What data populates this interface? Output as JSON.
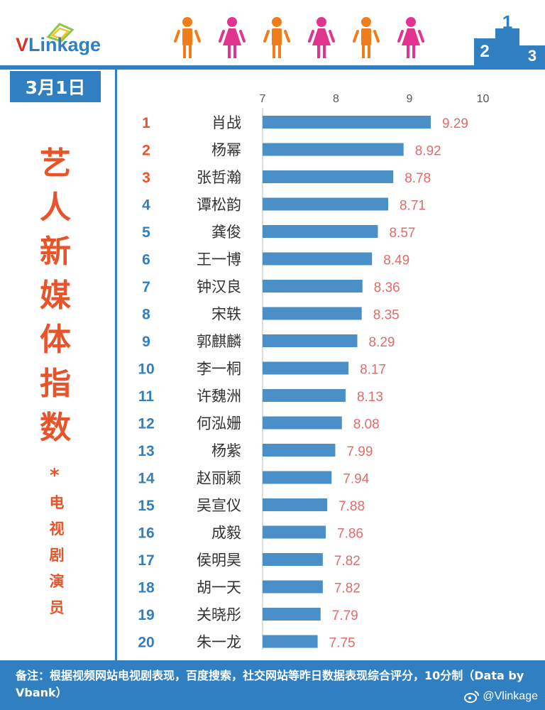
{
  "header": {
    "logo_v": "V",
    "logo_rest": "Linkage",
    "podium_labels": [
      "2",
      "1",
      "3"
    ]
  },
  "date": "3月1日",
  "title_chars": [
    "艺",
    "人",
    "新",
    "媒",
    "体",
    "指",
    "数"
  ],
  "asterisk": "*",
  "subtitle_chars": [
    "电",
    "视",
    "剧",
    "演",
    "员"
  ],
  "footer": {
    "note": "备注：根据视频网站电视剧表现，百度搜索，社交网站等昨日数据表现综合评分，10分制（Data by Vbank）",
    "weibo": "@Vlinkage"
  },
  "colors": {
    "blue": "#2f7fc1",
    "bar": "#4a8fc7",
    "rank_red": "#e8542a",
    "rank_blue": "#2f7fc1",
    "value_pink": "#e26b6b",
    "person_orange": "#f07d1c",
    "person_pink": "#e0348f"
  },
  "chart_data": {
    "type": "bar",
    "orientation": "horizontal",
    "xlim": [
      7,
      10
    ],
    "xticks": [
      "7",
      "8",
      "9",
      "10"
    ],
    "ranks": [
      "1",
      "2",
      "3",
      "4",
      "5",
      "6",
      "7",
      "8",
      "9",
      "10",
      "11",
      "12",
      "13",
      "14",
      "15",
      "16",
      "17",
      "18",
      "19",
      "20"
    ],
    "categories": [
      "肖战",
      "杨幂",
      "张哲瀚",
      "谭松韵",
      "龚俊",
      "王一博",
      "钟汉良",
      "宋轶",
      "郭麒麟",
      "李一桐",
      "许魏洲",
      "何泓姗",
      "杨紫",
      "赵丽颖",
      "吴宣仪",
      "成毅",
      "侯明昊",
      "胡一天",
      "关晓彤",
      "朱一龙"
    ],
    "values": [
      9.29,
      8.92,
      8.78,
      8.71,
      8.57,
      8.49,
      8.36,
      8.35,
      8.29,
      8.17,
      8.13,
      8.08,
      7.99,
      7.94,
      7.88,
      7.86,
      7.82,
      7.82,
      7.79,
      7.75
    ],
    "value_labels": [
      "9.29",
      "8.92",
      "8.78",
      "8.71",
      "8.57",
      "8.49",
      "8.36",
      "8.35",
      "8.29",
      "8.17",
      "8.13",
      "8.08",
      "7.99",
      "7.94",
      "7.88",
      "7.86",
      "7.82",
      "7.82",
      "7.79",
      "7.75"
    ],
    "top_ranks_highlighted": 3,
    "grid": false
  }
}
